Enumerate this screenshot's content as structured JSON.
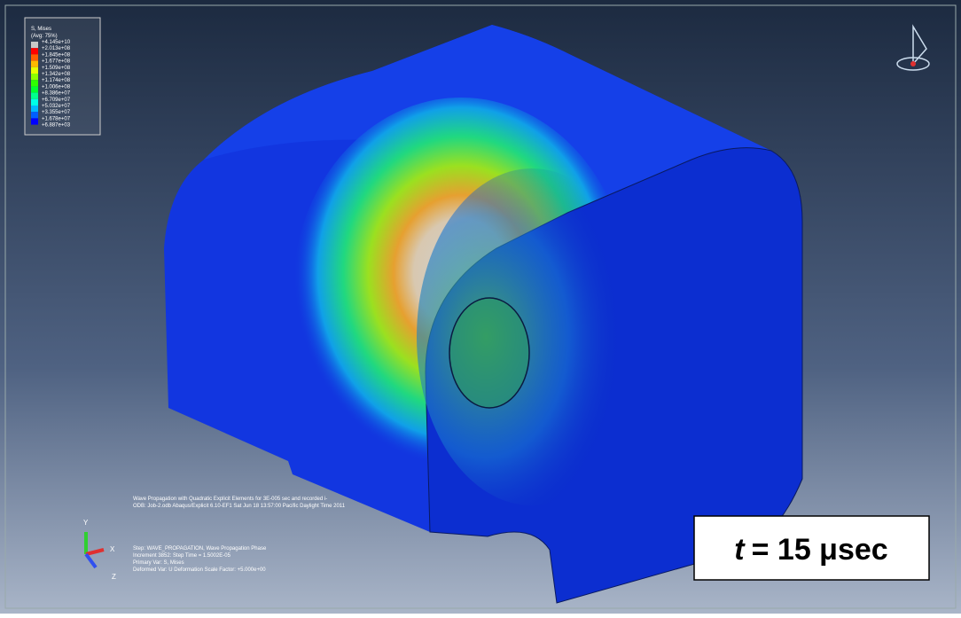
{
  "legend": {
    "title": "S, Mises",
    "subtitle": "(Avg: 75%)",
    "values": [
      "+4.145e+10",
      "+2.013e+08",
      "+1.845e+08",
      "+1.677e+08",
      "+1.509e+08",
      "+1.342e+08",
      "+1.174e+08",
      "+1.006e+08",
      "+8.386e+07",
      "+6.709e+07",
      "+5.032e+07",
      "+3.355e+07",
      "+1.678e+07",
      "+6.887e+03"
    ],
    "colors": [
      "#c8c8c8",
      "#ff0000",
      "#ff5e00",
      "#ffb900",
      "#e8ff00",
      "#8dff00",
      "#2fff00",
      "#00ff2f",
      "#00ff8d",
      "#00ffe8",
      "#00b9ff",
      "#005eff",
      "#0000ff"
    ]
  },
  "info": {
    "lines": [
      "Wave Propagation with Quadratic Explicit Elements for 3E-005 sec and recorded i-",
      "ODB: Job-2.odb    Abaqus/Explicit 6.10-EF1    Sat Jun 18 13:57:00 Pacific Daylight Time 2011"
    ],
    "step": [
      "Step: WAVE_PROPAGATION, Wave Propagation Phase",
      "Increment    3852: Step Time =    1.5002E-05",
      "Primary Var: S, Mises",
      "Deformed Var: U   Deformation Scale Factor: +5.000e+00"
    ]
  },
  "triad": {
    "x": "X",
    "y": "Y",
    "z": "Z"
  },
  "time_label": {
    "var": "t",
    "text": "= 15 μsec"
  }
}
